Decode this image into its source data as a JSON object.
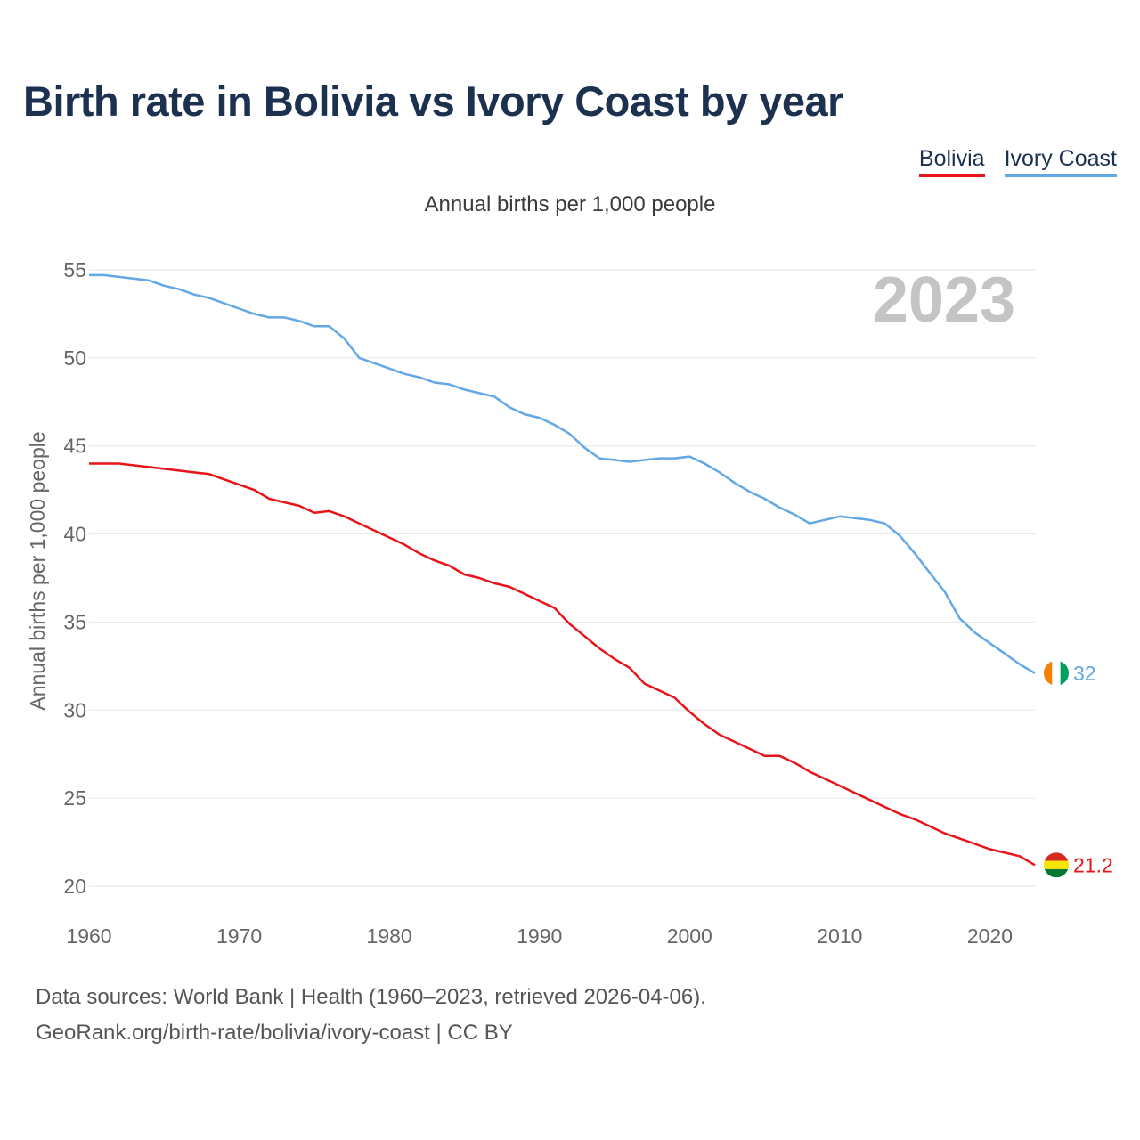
{
  "title": "Birth rate in Bolivia vs Ivory Coast by year",
  "subtitle": "Annual births per 1,000 people",
  "legend": [
    {
      "label": "Bolivia",
      "color": "#e8141a"
    },
    {
      "label": "Ivory Coast",
      "color": "#63a8e6"
    }
  ],
  "year_watermark": "2023",
  "footer": {
    "line1": "Data sources: World Bank | Health (1960–2023, retrieved 2026-04-06).",
    "line2": "GeoRank.org/birth-rate/bolivia/ivory-coast | CC BY"
  },
  "chart_data": {
    "type": "line",
    "title": "Birth rate in Bolivia vs Ivory Coast by year",
    "ylabel": "Annual births per 1,000 people",
    "xlabel": "",
    "xlim": [
      1960,
      2023
    ],
    "ylim": [
      20,
      55
    ],
    "x_ticks": [
      1960,
      1970,
      1980,
      1990,
      2000,
      2010,
      2020
    ],
    "y_ticks": [
      20,
      25,
      30,
      35,
      40,
      45,
      50,
      55
    ],
    "grid": true,
    "legend_position": "top-right",
    "x": [
      1960,
      1961,
      1962,
      1963,
      1964,
      1965,
      1966,
      1967,
      1968,
      1969,
      1970,
      1971,
      1972,
      1973,
      1974,
      1975,
      1976,
      1977,
      1978,
      1979,
      1980,
      1981,
      1982,
      1983,
      1984,
      1985,
      1986,
      1987,
      1988,
      1989,
      1990,
      1991,
      1992,
      1993,
      1994,
      1995,
      1996,
      1997,
      1998,
      1999,
      2000,
      2001,
      2002,
      2003,
      2004,
      2005,
      2006,
      2007,
      2008,
      2009,
      2010,
      2011,
      2012,
      2013,
      2014,
      2015,
      2016,
      2017,
      2018,
      2019,
      2020,
      2021,
      2022,
      2023
    ],
    "series": [
      {
        "name": "Bolivia",
        "color": "#e8141a",
        "end_label": "21.2",
        "values": [
          44.0,
          44.0,
          44.0,
          43.9,
          43.8,
          43.7,
          43.6,
          43.5,
          43.4,
          43.1,
          42.8,
          42.5,
          42.0,
          41.8,
          41.6,
          41.2,
          41.3,
          41.0,
          40.6,
          40.2,
          39.8,
          39.4,
          38.9,
          38.5,
          38.2,
          37.7,
          37.5,
          37.2,
          37.0,
          36.6,
          36.2,
          35.8,
          34.9,
          34.2,
          33.5,
          32.9,
          32.4,
          31.5,
          31.1,
          30.7,
          29.9,
          29.2,
          28.6,
          28.2,
          27.8,
          27.4,
          27.4,
          27.0,
          26.5,
          26.1,
          25.7,
          25.3,
          24.9,
          24.5,
          24.1,
          23.8,
          23.4,
          23.0,
          22.7,
          22.4,
          22.1,
          21.9,
          21.7,
          21.2
        ]
      },
      {
        "name": "Ivory Coast",
        "color": "#63a8e6",
        "end_label": "32",
        "values": [
          54.7,
          54.7,
          54.6,
          54.5,
          54.4,
          54.1,
          53.9,
          53.6,
          53.4,
          53.1,
          52.8,
          52.5,
          52.3,
          52.3,
          52.1,
          51.8,
          51.8,
          51.1,
          50.0,
          49.7,
          49.4,
          49.1,
          48.9,
          48.6,
          48.5,
          48.2,
          48.0,
          47.8,
          47.2,
          46.8,
          46.6,
          46.2,
          45.7,
          44.9,
          44.3,
          44.2,
          44.1,
          44.2,
          44.3,
          44.3,
          44.4,
          44.0,
          43.5,
          42.9,
          42.4,
          42.0,
          41.5,
          41.1,
          40.6,
          40.8,
          41.0,
          40.9,
          40.8,
          40.6,
          39.9,
          38.9,
          37.8,
          36.7,
          35.2,
          34.4,
          33.8,
          33.2,
          32.6,
          32.1
        ]
      }
    ]
  }
}
